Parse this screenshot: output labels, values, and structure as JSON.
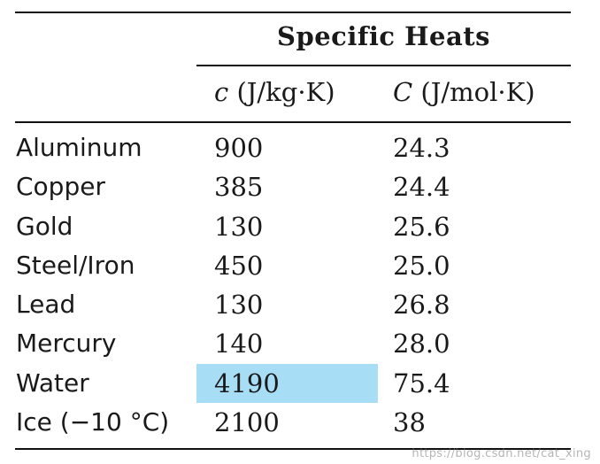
{
  "table": {
    "group_header": "Specific Heats",
    "columns": [
      {
        "symbol": "c",
        "unit": " (J/kg·K)"
      },
      {
        "symbol": "C",
        "unit": " (J/mol·K)"
      }
    ],
    "rows": [
      {
        "material": "Aluminum",
        "c": "900",
        "C": "24.3"
      },
      {
        "material": "Copper",
        "c": "385",
        "C": "24.4"
      },
      {
        "material": "Gold",
        "c": "130",
        "C": "25.6"
      },
      {
        "material": "Steel/Iron",
        "c": "450",
        "C": "25.0"
      },
      {
        "material": "Lead",
        "c": "130",
        "C": "26.8"
      },
      {
        "material": "Mercury",
        "c": "140",
        "C": "28.0"
      },
      {
        "material": "Water",
        "c": "4190",
        "C": "75.4"
      },
      {
        "material": "Ice (−10 °C)",
        "c": "2100",
        "C": "38"
      }
    ],
    "highlight": {
      "row_index": 6,
      "column": "c",
      "color": "#a8def5"
    }
  },
  "watermark": "https://blog.csdn.net/cat_xing"
}
